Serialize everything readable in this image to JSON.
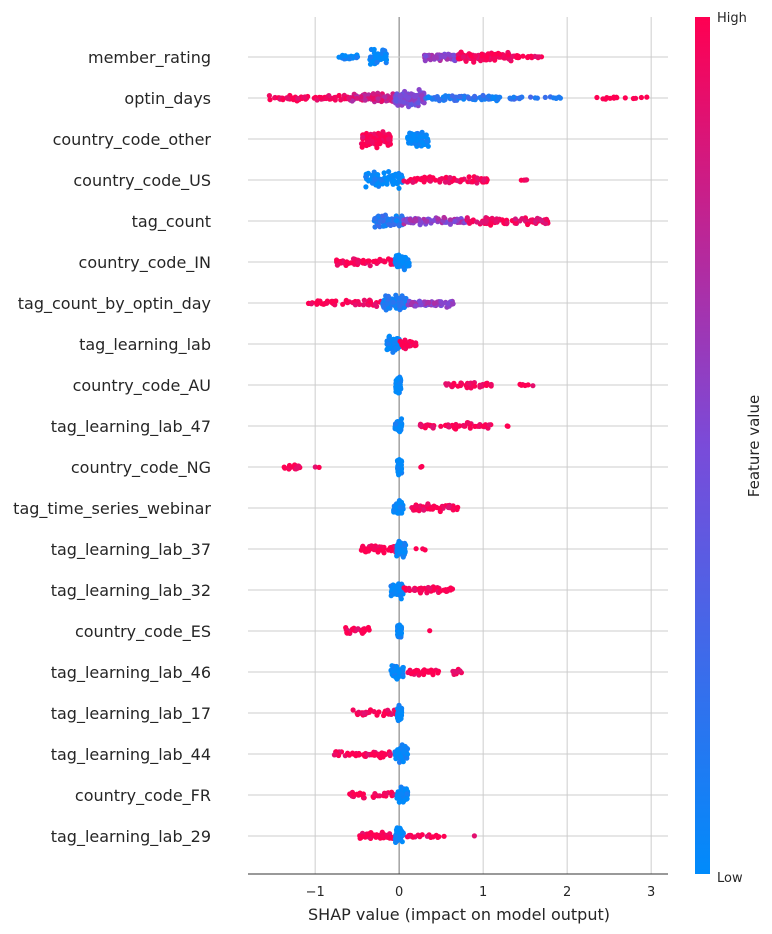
{
  "chart_data": {
    "type": "scatter",
    "subtype": "shap-beeswarm",
    "xlabel": "SHAP value (impact on model output)",
    "xlim": [
      -1.8,
      3.2
    ],
    "xticks": [
      -1,
      0,
      1,
      2,
      3
    ],
    "xtick_labels": [
      "−1",
      "0",
      "1",
      "2",
      "3"
    ],
    "colorbar": {
      "title": "Feature value",
      "high_label": "High",
      "low_label": "Low",
      "high_color": "#ff0d57",
      "low_color": "#1e88e5"
    },
    "grid": true,
    "features": [
      {
        "name": "member_rating",
        "clusters": [
          {
            "from": -0.75,
            "to": -0.45,
            "hi": 0.0,
            "n": 30,
            "w": 0.35
          },
          {
            "from": -0.35,
            "to": -0.15,
            "hi": 0.0,
            "n": 60,
            "w": 1.0
          },
          {
            "from": 0.3,
            "to": 0.7,
            "hi": 0.6,
            "n": 60,
            "w": 0.55
          },
          {
            "from": 0.7,
            "to": 1.35,
            "hi": 1.0,
            "n": 90,
            "w": 0.6
          },
          {
            "from": 1.35,
            "to": 1.7,
            "hi": 1.0,
            "n": 20,
            "w": 0.25
          }
        ]
      },
      {
        "name": "optin_days",
        "clusters": [
          {
            "from": -1.55,
            "to": -0.6,
            "hi": 1.0,
            "n": 70,
            "w": 0.35
          },
          {
            "from": -0.6,
            "to": -0.05,
            "hi": 0.8,
            "n": 90,
            "w": 0.6
          },
          {
            "from": -0.05,
            "to": 0.3,
            "hi": 0.5,
            "n": 120,
            "w": 1.0
          },
          {
            "from": 0.3,
            "to": 1.2,
            "hi": 0.15,
            "n": 80,
            "w": 0.35
          },
          {
            "from": 1.2,
            "to": 1.95,
            "hi": 0.2,
            "n": 20,
            "w": 0.2
          },
          {
            "from": 2.3,
            "to": 2.95,
            "hi": 1.0,
            "n": 14,
            "w": 0.15
          }
        ]
      },
      {
        "name": "country_code_other",
        "clusters": [
          {
            "from": -0.45,
            "to": -0.1,
            "hi": 1.0,
            "n": 90,
            "w": 1.0
          },
          {
            "from": 0.1,
            "to": 0.35,
            "hi": 0.0,
            "n": 70,
            "w": 0.9
          }
        ]
      },
      {
        "name": "country_code_US",
        "clusters": [
          {
            "from": -0.4,
            "to": 0.05,
            "hi": 0.0,
            "n": 80,
            "w": 1.0
          },
          {
            "from": 0.05,
            "to": 1.05,
            "hi": 1.0,
            "n": 70,
            "w": 0.5
          },
          {
            "from": 1.45,
            "to": 1.52,
            "hi": 1.0,
            "n": 4,
            "w": 0.15
          }
        ]
      },
      {
        "name": "tag_count",
        "clusters": [
          {
            "from": -0.3,
            "to": 0.05,
            "hi": 0.15,
            "n": 70,
            "w": 1.0
          },
          {
            "from": 0.05,
            "to": 0.8,
            "hi": 0.6,
            "n": 80,
            "w": 0.5
          },
          {
            "from": 0.8,
            "to": 1.8,
            "hi": 0.95,
            "n": 90,
            "w": 0.45
          }
        ]
      },
      {
        "name": "country_code_IN",
        "clusters": [
          {
            "from": -0.75,
            "to": -0.05,
            "hi": 1.0,
            "n": 60,
            "w": 0.45
          },
          {
            "from": -0.05,
            "to": 0.12,
            "hi": 0.0,
            "n": 60,
            "w": 1.0
          }
        ]
      },
      {
        "name": "tag_count_by_optin_day",
        "clusters": [
          {
            "from": -1.1,
            "to": -0.2,
            "hi": 1.0,
            "n": 50,
            "w": 0.4
          },
          {
            "from": -0.2,
            "to": 0.1,
            "hi": 0.1,
            "n": 90,
            "w": 1.0
          },
          {
            "from": 0.1,
            "to": 0.65,
            "hi": 0.6,
            "n": 60,
            "w": 0.45
          }
        ]
      },
      {
        "name": "tag_learning_lab",
        "clusters": [
          {
            "from": -0.15,
            "to": 0.0,
            "hi": 0.0,
            "n": 60,
            "w": 1.0
          },
          {
            "from": 0.0,
            "to": 0.2,
            "hi": 1.0,
            "n": 40,
            "w": 0.6
          }
        ]
      },
      {
        "name": "country_code_AU",
        "clusters": [
          {
            "from": -0.04,
            "to": 0.02,
            "hi": 0.0,
            "n": 60,
            "w": 1.0
          },
          {
            "from": 0.55,
            "to": 1.1,
            "hi": 1.0,
            "n": 40,
            "w": 0.4
          },
          {
            "from": 1.4,
            "to": 1.62,
            "hi": 1.0,
            "n": 6,
            "w": 0.2
          }
        ]
      },
      {
        "name": "tag_learning_lab_47",
        "clusters": [
          {
            "from": -0.05,
            "to": 0.03,
            "hi": 0.0,
            "n": 60,
            "w": 1.0
          },
          {
            "from": 0.25,
            "to": 1.1,
            "hi": 1.0,
            "n": 50,
            "w": 0.4
          },
          {
            "from": 1.27,
            "to": 1.32,
            "hi": 1.0,
            "n": 2,
            "w": 0.1
          }
        ]
      },
      {
        "name": "country_code_NG",
        "clusters": [
          {
            "from": -1.4,
            "to": -1.15,
            "hi": 1.0,
            "n": 20,
            "w": 0.5
          },
          {
            "from": -1.0,
            "to": -0.95,
            "hi": 1.0,
            "n": 2,
            "w": 0.1
          },
          {
            "from": -0.02,
            "to": 0.03,
            "hi": 0.0,
            "n": 60,
            "w": 1.0
          },
          {
            "from": 0.24,
            "to": 0.28,
            "hi": 1.0,
            "n": 2,
            "w": 0.1
          }
        ]
      },
      {
        "name": "tag_time_series_webinar",
        "clusters": [
          {
            "from": -0.07,
            "to": 0.05,
            "hi": 0.0,
            "n": 60,
            "w": 1.0
          },
          {
            "from": 0.15,
            "to": 0.7,
            "hi": 1.0,
            "n": 50,
            "w": 0.5
          }
        ]
      },
      {
        "name": "tag_learning_lab_37",
        "clusters": [
          {
            "from": -0.45,
            "to": -0.03,
            "hi": 1.0,
            "n": 50,
            "w": 0.5
          },
          {
            "from": -0.03,
            "to": 0.08,
            "hi": 0.0,
            "n": 60,
            "w": 1.0
          },
          {
            "from": 0.2,
            "to": 0.35,
            "hi": 1.0,
            "n": 3,
            "w": 0.1
          }
        ]
      },
      {
        "name": "tag_learning_lab_32",
        "clusters": [
          {
            "from": -0.1,
            "to": 0.05,
            "hi": 0.0,
            "n": 60,
            "w": 1.0
          },
          {
            "from": 0.05,
            "to": 0.65,
            "hi": 1.0,
            "n": 50,
            "w": 0.45
          }
        ]
      },
      {
        "name": "country_code_ES",
        "clusters": [
          {
            "from": -0.68,
            "to": -0.32,
            "hi": 1.0,
            "n": 30,
            "w": 0.5
          },
          {
            "from": -0.02,
            "to": 0.03,
            "hi": 0.0,
            "n": 60,
            "w": 1.0
          },
          {
            "from": 0.35,
            "to": 0.38,
            "hi": 1.0,
            "n": 1,
            "w": 0.1
          }
        ]
      },
      {
        "name": "tag_learning_lab_46",
        "clusters": [
          {
            "from": -0.1,
            "to": 0.05,
            "hi": 0.0,
            "n": 60,
            "w": 1.0
          },
          {
            "from": 0.1,
            "to": 0.75,
            "hi": 1.0,
            "n": 40,
            "w": 0.4
          }
        ]
      },
      {
        "name": "tag_learning_lab_17",
        "clusters": [
          {
            "from": -0.55,
            "to": -0.02,
            "hi": 1.0,
            "n": 40,
            "w": 0.45
          },
          {
            "from": -0.02,
            "to": 0.03,
            "hi": 0.0,
            "n": 60,
            "w": 1.0
          }
        ]
      },
      {
        "name": "tag_learning_lab_44",
        "clusters": [
          {
            "from": -0.78,
            "to": -0.1,
            "hi": 1.0,
            "n": 50,
            "w": 0.45
          },
          {
            "from": -0.05,
            "to": 0.1,
            "hi": 0.0,
            "n": 60,
            "w": 1.0
          }
        ]
      },
      {
        "name": "country_code_FR",
        "clusters": [
          {
            "from": -0.6,
            "to": -0.05,
            "hi": 1.0,
            "n": 30,
            "w": 0.45
          },
          {
            "from": -0.03,
            "to": 0.1,
            "hi": 0.0,
            "n": 60,
            "w": 1.0
          }
        ]
      },
      {
        "name": "tag_learning_lab_29",
        "clusters": [
          {
            "from": -0.52,
            "to": -0.05,
            "hi": 1.0,
            "n": 50,
            "w": 0.45
          },
          {
            "from": -0.05,
            "to": 0.05,
            "hi": 0.0,
            "n": 60,
            "w": 1.0
          },
          {
            "from": 0.05,
            "to": 0.55,
            "hi": 1.0,
            "n": 20,
            "w": 0.25
          },
          {
            "from": 0.88,
            "to": 0.9,
            "hi": 1.0,
            "n": 1,
            "w": 0.1
          }
        ]
      }
    ]
  }
}
